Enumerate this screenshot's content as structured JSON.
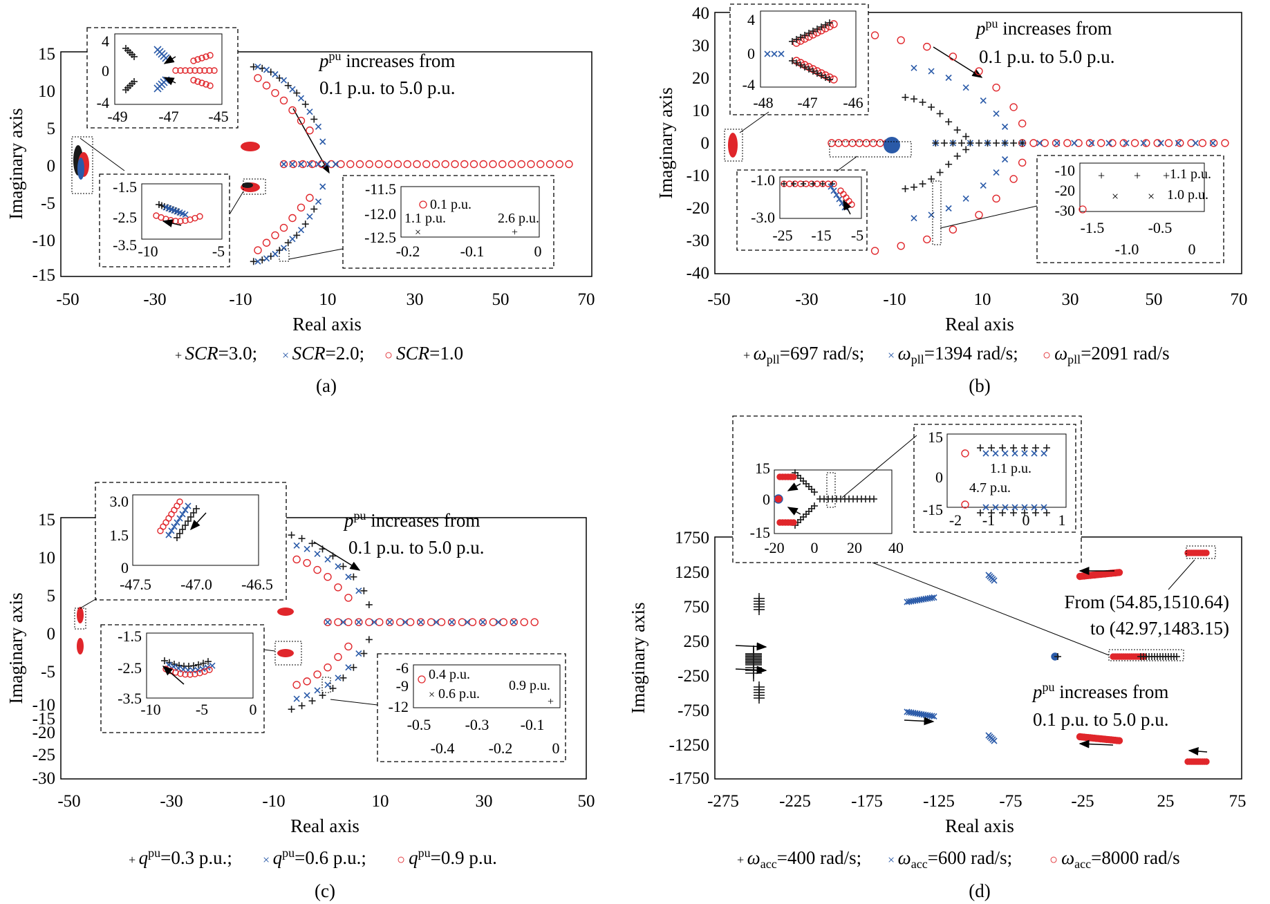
{
  "colors": {
    "series1": "#1a1a1a",
    "series2": "#2a5aa8",
    "series3": "#e0262b",
    "axis": "#000000"
  },
  "panels": [
    {
      "label": "(a)",
      "xlabel": "Real axis",
      "ylabel": "Imaginary axis",
      "xticks": [
        "-50",
        "-30",
        "-10",
        "10",
        "30",
        "50",
        "70"
      ],
      "yticks": [
        "15",
        "10",
        "5",
        "0",
        "-5",
        "-10",
        "-15"
      ],
      "annotation_line1": "increases from",
      "annotation_line2": "0.1 p.u. to 5.0 p.u.",
      "p_symbol": "p",
      "p_sup": "pu",
      "legend": [
        {
          "marker": "+",
          "var": "SCR",
          "value": "=3.0;"
        },
        {
          "marker": "×",
          "var": "SCR",
          "value": "=2.0;"
        },
        {
          "marker": "○",
          "var": "SCR",
          "value": "=1.0"
        }
      ],
      "insets": [
        {
          "xticks": [
            "-49",
            "-47",
            "-45"
          ],
          "yticks": [
            "4",
            "0",
            "-4"
          ]
        },
        {
          "xticks": [
            "-10",
            "-5"
          ],
          "yticks": [
            "-1.5",
            "-2.5",
            "-3.5"
          ]
        },
        {
          "xticks": [
            "-0.2",
            "-0.1",
            "0"
          ],
          "yticks": [
            "-11.5",
            "-12.0",
            "-12.5"
          ],
          "labels": [
            "0.1 p.u.",
            "1.1 p.u.",
            "2.6 p.u."
          ]
        }
      ]
    },
    {
      "label": "(b)",
      "xlabel": "Real axis",
      "ylabel": "Imaginary axis",
      "xticks": [
        "-50",
        "-30",
        "-10",
        "10",
        "30",
        "50",
        "70"
      ],
      "yticks": [
        "40",
        "30",
        "20",
        "10",
        "0",
        "-10",
        "-20",
        "-30",
        "-40"
      ],
      "annotation_line1": "increases from",
      "annotation_line2": "0.1 p.u. to 5.0 p.u.",
      "p_symbol": "p",
      "p_sup": "pu",
      "legend": [
        {
          "marker": "+",
          "var": "ω",
          "sub": "pll",
          "value": "=697 rad/s;"
        },
        {
          "marker": "×",
          "var": "ω",
          "sub": "pll",
          "value": "=1394 rad/s;"
        },
        {
          "marker": "○",
          "var": "ω",
          "sub": "pll",
          "value": "=2091 rad/s"
        }
      ],
      "insets": [
        {
          "xticks": [
            "-48",
            "-47",
            "-46"
          ],
          "yticks": [
            "4",
            "0",
            "-4"
          ]
        },
        {
          "xticks": [
            "-25",
            "-15",
            "-5"
          ],
          "yticks": [
            "-1.0",
            "-3.0"
          ]
        },
        {
          "xticks_top": [
            "-1.5",
            "-0.5"
          ],
          "xticks_bottom": [
            "-1.0",
            "0"
          ],
          "yticks": [
            "-10",
            "-20",
            "-30"
          ],
          "labels": [
            "1.1 p.u.",
            "1.0 p.u."
          ]
        }
      ]
    },
    {
      "label": "(c)",
      "xlabel": "Real axis",
      "ylabel": "Imaginary axis",
      "xticks": [
        "-50",
        "-30",
        "-10",
        "10",
        "30",
        "50"
      ],
      "yticks": [
        "15",
        "10",
        "5",
        "0",
        "-5",
        "-10",
        "-15",
        "-20",
        "-25",
        "-30"
      ],
      "annotation_line1": "increases from",
      "annotation_line2": "0.1 p.u. to 5.0 p.u.",
      "p_symbol": "p",
      "p_sup": "pu",
      "legend": [
        {
          "marker": "+",
          "var": "q",
          "sup": "pu",
          "value": "=0.3 p.u.;"
        },
        {
          "marker": "×",
          "var": "q",
          "sup": "pu",
          "value": "=0.6 p.u.;"
        },
        {
          "marker": "○",
          "var": "q",
          "sup": "pu",
          "value": "=0.9 p.u."
        }
      ],
      "insets": [
        {
          "xticks": [
            "-47.5",
            "-47.0",
            "-46.5"
          ],
          "yticks": [
            "3.0",
            "1.5",
            "0"
          ]
        },
        {
          "xticks": [
            "-10",
            "-5",
            "0"
          ],
          "yticks": [
            "-1.5",
            "-2.5",
            "-3.5"
          ]
        },
        {
          "xticks_top": [
            "-0.5",
            "-0.3",
            "-0.1"
          ],
          "xticks_bottom": [
            "-0.4",
            "-0.2",
            "0"
          ],
          "yticks": [
            "-6",
            "-9",
            "-12"
          ],
          "labels": [
            "0.4 p.u.",
            "0.6 p.u.",
            "0.9 p.u."
          ]
        }
      ]
    },
    {
      "label": "(d)",
      "xlabel": "Real axis",
      "ylabel": "Imaginary axis",
      "xticks": [
        "-275",
        "-225",
        "-175",
        "-125",
        "-75",
        "-25",
        "25",
        "75"
      ],
      "yticks": [
        "1750",
        "1250",
        "750",
        "250",
        "-250",
        "-750",
        "-1250",
        "-1750"
      ],
      "annotation_line1": "increases from",
      "annotation_line2": "0.1 p.u. to 5.0 p.u.",
      "p_symbol": "p",
      "p_sup": "pu",
      "from_text": "From (54.85,1510.64)",
      "to_text": "to (42.97,1483.15)",
      "legend": [
        {
          "marker": "+",
          "var": "ω",
          "sub": "acc",
          "value": "=400 rad/s;"
        },
        {
          "marker": "×",
          "var": "ω",
          "sub": "acc",
          "value": "=600 rad/s;"
        },
        {
          "marker": "○",
          "var": "ω",
          "sub": "acc",
          "value": "=8000 rad/s"
        }
      ],
      "insets": [
        {
          "xticks": [
            "-20",
            "0",
            "20",
            "40"
          ],
          "yticks": [
            "15",
            "0",
            "-15"
          ]
        },
        {
          "xticks": [
            "-2",
            "-1",
            "0",
            "1"
          ],
          "yticks": [
            "15",
            "0",
            "-15"
          ],
          "labels": [
            "1.1 p.u.",
            "4.7 p.u."
          ]
        }
      ]
    }
  ],
  "chart_data": [
    {
      "type": "scatter",
      "xlabel": "Real axis",
      "ylabel": "Imaginary axis",
      "xlim": [
        -50,
        70
      ],
      "ylim": [
        -15,
        15
      ],
      "series": [
        {
          "name": "SCR=3.0",
          "marker": "+",
          "x": [
            -7,
            -5,
            -3,
            -1,
            1,
            3,
            5,
            7
          ],
          "y": [
            13,
            12.8,
            12.3,
            11.5,
            10.5,
            9.5,
            8,
            6
          ]
        },
        {
          "name": "SCR=2.0",
          "marker": "x",
          "x": [
            -6,
            -4,
            -2,
            0,
            2,
            4,
            6,
            8,
            9
          ],
          "y": [
            13,
            12.6,
            12,
            11.2,
            10,
            8.8,
            7,
            5,
            3
          ]
        },
        {
          "name": "SCR=1.0",
          "marker": "o",
          "x": [
            -6,
            -4,
            -2,
            0,
            2,
            4,
            6
          ],
          "y": [
            11.5,
            10.5,
            9.5,
            8.5,
            7.2,
            5.8,
            4.5
          ]
        },
        {
          "name": "SCR=1.0 real branch",
          "marker": "o",
          "x": [
            0,
            10,
            20,
            30,
            40,
            50,
            60,
            67
          ],
          "y": [
            0,
            0,
            0,
            0,
            0,
            0,
            0,
            0
          ]
        }
      ]
    },
    {
      "type": "scatter",
      "xlabel": "Real axis",
      "ylabel": "Imaginary axis",
      "xlim": [
        -50,
        70
      ],
      "ylim": [
        -40,
        40
      ],
      "series": [
        {
          "name": "ωpll=697 rad/s",
          "marker": "+",
          "x": [
            -7,
            -5,
            -3,
            -1,
            1,
            3,
            5,
            7
          ],
          "y": [
            14,
            13.5,
            12.5,
            11,
            9,
            6.5,
            4,
            2
          ]
        },
        {
          "name": "ωpll=1394 rad/s",
          "marker": "x",
          "x": [
            -5,
            -1,
            3,
            7,
            11,
            14,
            16
          ],
          "y": [
            23,
            22,
            20,
            17,
            13,
            9,
            5
          ]
        },
        {
          "name": "ωpll=2091 rad/s",
          "marker": "o",
          "x": [
            -14,
            -8,
            -2,
            4,
            10,
            14,
            18,
            20
          ],
          "y": [
            33,
            31.5,
            29.5,
            26.5,
            22,
            17,
            11,
            6
          ]
        }
      ]
    },
    {
      "type": "scatter",
      "xlabel": "Real axis",
      "ylabel": "Imaginary axis",
      "xlim": [
        -50,
        50
      ],
      "ylim": [
        -30,
        15
      ],
      "series": [
        {
          "name": "qpu=0.3 p.u.",
          "marker": "+",
          "x": [
            -7,
            -5,
            -3,
            -1,
            1,
            3,
            5,
            7,
            8
          ],
          "y": [
            12.5,
            12,
            11.3,
            10.5,
            9.5,
            8,
            6.5,
            4.5,
            2.5
          ]
        },
        {
          "name": "qpu=0.6 p.u.",
          "marker": "x",
          "x": [
            -6,
            -4,
            -2,
            0,
            2,
            4,
            6
          ],
          "y": [
            11,
            10.5,
            9.8,
            9,
            8,
            6.5,
            4.5
          ]
        },
        {
          "name": "qpu=0.9 p.u.",
          "marker": "o",
          "x": [
            -6,
            -4,
            -2,
            0,
            2,
            4
          ],
          "y": [
            9,
            8.5,
            7.5,
            6.5,
            5,
            3.5
          ]
        }
      ]
    },
    {
      "type": "scatter",
      "xlabel": "Real axis",
      "ylabel": "Imaginary axis",
      "xlim": [
        -275,
        75
      ],
      "ylim": [
        -1750,
        1750
      ],
      "series": [
        {
          "name": "ωacc=400 rad/s",
          "marker": "+",
          "x": [
            -265,
            -255,
            -245,
            -260,
            -250,
            -240
          ],
          "y": [
            100,
            100,
            100,
            -100,
            -100,
            -100
          ]
        },
        {
          "name": "ωacc=600 rad/s",
          "marker": "x",
          "x": [
            -145,
            -135,
            -125,
            -95,
            -145,
            -135,
            -125,
            -95
          ],
          "y": [
            780,
            790,
            800,
            1150,
            -780,
            -790,
            -800,
            -1150
          ]
        },
        {
          "name": "ωacc=8000 rad/s",
          "marker": "o",
          "x": [
            -30,
            -15,
            0,
            43,
            55,
            -30,
            -15,
            0,
            43,
            55
          ],
          "y": [
            1170,
            1175,
            1180,
            1483,
            1510,
            -1170,
            -1175,
            -1180,
            -1483,
            -1510
          ]
        }
      ]
    }
  ]
}
